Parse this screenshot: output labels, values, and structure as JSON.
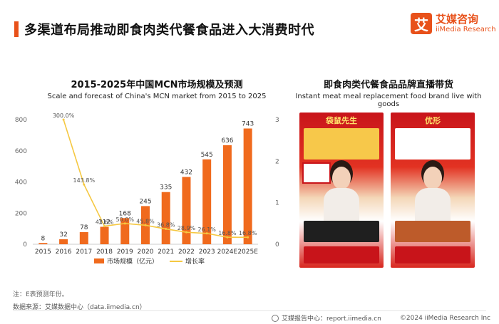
{
  "header": {
    "title": "多渠道布局推动即食肉类代餐食品进入大消费时代"
  },
  "logo": {
    "mark": "艾",
    "name_cn": "艾媒咨询",
    "name_en": "iiMedia Research"
  },
  "chart_title": "2015-2025年中国MCN市场规模及预测",
  "chart_subtitle": "Scale and forecast of China's MCN market from 2015 to 2025",
  "chart_data": {
    "type": "bar",
    "categories": [
      "2015",
      "2016",
      "2017",
      "2018",
      "2019",
      "2020",
      "2021",
      "2022",
      "2023",
      "2024E",
      "2025E"
    ],
    "series": [
      {
        "name": "市场规模（亿元）",
        "type": "bar",
        "axis": "left",
        "values": [
          8,
          32,
          78,
          112,
          168,
          245,
          335,
          432,
          545,
          636,
          743
        ],
        "color": "#f06a1d"
      },
      {
        "name": "增长率",
        "type": "line",
        "axis": "right",
        "values": [
          null,
          3.0,
          1.438,
          0.436,
          0.5,
          0.458,
          0.368,
          0.289,
          0.261,
          0.168,
          0.168
        ],
        "labels": [
          "",
          "300.0%",
          "143.8%",
          "43.6%",
          "50.0%",
          "45.8%",
          "36.8%",
          "28.9%",
          "26.1%",
          "16.8%",
          "16.8%"
        ],
        "color": "#f5c842"
      }
    ],
    "ylim_left": [
      0,
      800
    ],
    "yticks_left": [
      "0",
      "200",
      "400",
      "600",
      "800"
    ],
    "ylim_right": [
      0,
      3
    ],
    "yticks_right": [
      "0",
      "1",
      "2",
      "3"
    ],
    "grid": false,
    "legend": "bottom"
  },
  "right": {
    "title": "即食肉类代餐食品品牌直播带货",
    "subtitle": "Instant meat meal replacement food brand live with goods",
    "panels": [
      {
        "label": "袋鼠先生"
      },
      {
        "label": "优形"
      }
    ]
  },
  "note": "注：E表预测年份。",
  "source": "数据来源：艾媒数据中心（data.iimedia.cn）",
  "footer": {
    "report_center": "艾媒报告中心：report.iimedia.cn",
    "copyright": "©2024 iiMedia Research Inc"
  }
}
